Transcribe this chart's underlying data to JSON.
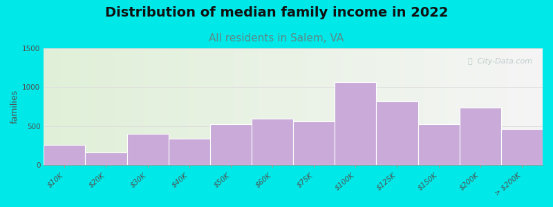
{
  "title": "Distribution of median family income in 2022",
  "subtitle": "All residents in Salem, VA",
  "ylabel": "families",
  "categories": [
    "$10K",
    "$20K",
    "$30K",
    "$40K",
    "$50K",
    "$60K",
    "$75K",
    "$100K",
    "$125K",
    "$150K",
    "$200K",
    "> $200K"
  ],
  "values": [
    260,
    160,
    400,
    340,
    525,
    600,
    560,
    1065,
    820,
    525,
    740,
    460
  ],
  "bar_color": "#c9aad8",
  "bar_edge_color": "#ffffff",
  "background_outer": "#00e8e8",
  "bg_gradient_left": "#e0f0d8",
  "bg_gradient_right": "#f5f5f5",
  "ylim": [
    0,
    1500
  ],
  "yticks": [
    0,
    500,
    1000,
    1500
  ],
  "title_fontsize": 14,
  "subtitle_fontsize": 11,
  "ylabel_fontsize": 9,
  "tick_fontsize": 7.5,
  "watermark_text": "ⓘ  City-Data.com",
  "watermark_color": "#b8c8c8",
  "subtitle_color": "#5a8a8a",
  "axis_color": "#999999",
  "grid_color": "#dddddd"
}
